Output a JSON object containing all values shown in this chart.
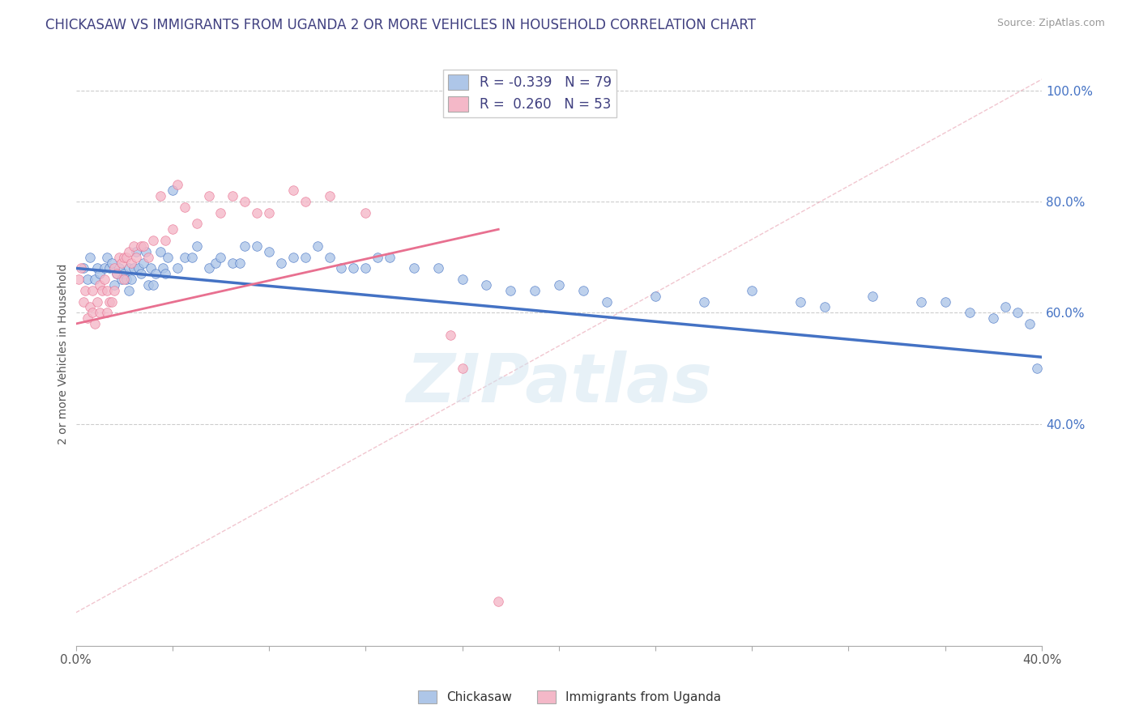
{
  "title": "CHICKASAW VS IMMIGRANTS FROM UGANDA 2 OR MORE VEHICLES IN HOUSEHOLD CORRELATION CHART",
  "source_text": "Source: ZipAtlas.com",
  "ylabel": "2 or more Vehicles in Household",
  "legend_label_1": "Chickasaw",
  "legend_label_2": "Immigrants from Uganda",
  "R1": -0.339,
  "N1": 79,
  "R2": 0.26,
  "N2": 53,
  "color1": "#aec6e8",
  "color2": "#f4b8c8",
  "trendline1_color": "#4472c4",
  "trendline2_color": "#e87090",
  "xlim": [
    0.0,
    0.4
  ],
  "ylim": [
    0.0,
    1.05
  ],
  "xtick_positions": [
    0.0,
    0.04,
    0.08,
    0.12,
    0.16,
    0.2,
    0.24,
    0.28,
    0.32,
    0.36,
    0.4
  ],
  "ytick_right_vals": [
    0.4,
    0.6,
    0.8,
    1.0
  ],
  "background_color": "#ffffff",
  "watermark": "ZIPatlas",
  "title_color": "#404080",
  "title_fontsize": 12,
  "scatter1_x": [
    0.003,
    0.005,
    0.006,
    0.008,
    0.009,
    0.01,
    0.012,
    0.013,
    0.014,
    0.015,
    0.016,
    0.017,
    0.018,
    0.019,
    0.02,
    0.021,
    0.022,
    0.022,
    0.023,
    0.024,
    0.025,
    0.026,
    0.027,
    0.028,
    0.029,
    0.03,
    0.031,
    0.032,
    0.033,
    0.035,
    0.036,
    0.037,
    0.038,
    0.04,
    0.042,
    0.045,
    0.048,
    0.05,
    0.055,
    0.058,
    0.06,
    0.065,
    0.068,
    0.07,
    0.075,
    0.08,
    0.085,
    0.09,
    0.095,
    0.1,
    0.105,
    0.11,
    0.115,
    0.12,
    0.125,
    0.13,
    0.14,
    0.15,
    0.16,
    0.17,
    0.18,
    0.19,
    0.2,
    0.21,
    0.22,
    0.24,
    0.26,
    0.28,
    0.3,
    0.31,
    0.33,
    0.35,
    0.36,
    0.37,
    0.38,
    0.385,
    0.39,
    0.395,
    0.398
  ],
  "scatter1_y": [
    0.68,
    0.66,
    0.7,
    0.66,
    0.68,
    0.67,
    0.68,
    0.7,
    0.68,
    0.69,
    0.65,
    0.67,
    0.68,
    0.66,
    0.67,
    0.66,
    0.64,
    0.68,
    0.66,
    0.68,
    0.71,
    0.68,
    0.67,
    0.69,
    0.71,
    0.65,
    0.68,
    0.65,
    0.67,
    0.71,
    0.68,
    0.67,
    0.7,
    0.82,
    0.68,
    0.7,
    0.7,
    0.72,
    0.68,
    0.69,
    0.7,
    0.69,
    0.69,
    0.72,
    0.72,
    0.71,
    0.69,
    0.7,
    0.7,
    0.72,
    0.7,
    0.68,
    0.68,
    0.68,
    0.7,
    0.7,
    0.68,
    0.68,
    0.66,
    0.65,
    0.64,
    0.64,
    0.65,
    0.64,
    0.62,
    0.63,
    0.62,
    0.64,
    0.62,
    0.61,
    0.63,
    0.62,
    0.62,
    0.6,
    0.59,
    0.61,
    0.6,
    0.58,
    0.5
  ],
  "scatter2_x": [
    0.001,
    0.002,
    0.003,
    0.004,
    0.005,
    0.006,
    0.007,
    0.007,
    0.008,
    0.009,
    0.01,
    0.01,
    0.011,
    0.012,
    0.013,
    0.013,
    0.014,
    0.015,
    0.016,
    0.016,
    0.017,
    0.018,
    0.019,
    0.02,
    0.02,
    0.021,
    0.022,
    0.023,
    0.024,
    0.025,
    0.027,
    0.028,
    0.03,
    0.032,
    0.035,
    0.037,
    0.04,
    0.042,
    0.045,
    0.05,
    0.055,
    0.06,
    0.065,
    0.07,
    0.075,
    0.08,
    0.09,
    0.095,
    0.105,
    0.12,
    0.155,
    0.16,
    0.175
  ],
  "scatter2_y": [
    0.66,
    0.68,
    0.62,
    0.64,
    0.59,
    0.61,
    0.6,
    0.64,
    0.58,
    0.62,
    0.65,
    0.6,
    0.64,
    0.66,
    0.64,
    0.6,
    0.62,
    0.62,
    0.64,
    0.68,
    0.67,
    0.7,
    0.69,
    0.7,
    0.66,
    0.7,
    0.71,
    0.69,
    0.72,
    0.7,
    0.72,
    0.72,
    0.7,
    0.73,
    0.81,
    0.73,
    0.75,
    0.83,
    0.79,
    0.76,
    0.81,
    0.78,
    0.81,
    0.8,
    0.78,
    0.78,
    0.82,
    0.8,
    0.81,
    0.78,
    0.56,
    0.5,
    0.08
  ],
  "trendline1_x": [
    0.0,
    0.4
  ],
  "trendline1_y": [
    0.68,
    0.52
  ],
  "trendline2_x": [
    0.0,
    0.175
  ],
  "trendline2_y": [
    0.58,
    0.75
  ],
  "dashed_line_x": [
    0.0,
    0.4
  ],
  "dashed_line_y": [
    0.06,
    1.02
  ]
}
